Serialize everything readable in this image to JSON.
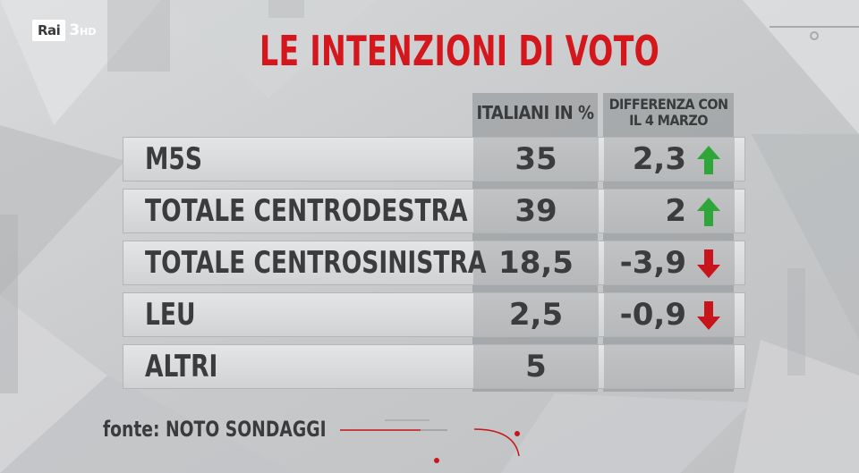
{
  "broadcaster": {
    "logo_text": "Rai",
    "channel": "3",
    "quality": "HD"
  },
  "title": "LE INTENZIONI DI VOTO",
  "source": "fonte: NOTO SONDAGGI",
  "colors": {
    "title": "#d4161d",
    "up": "#2fa63a",
    "down": "#c8141b"
  },
  "chart_data": {
    "type": "table",
    "title": "LE INTENZIONI DI VOTO",
    "columns": [
      "ITALIANI IN %",
      "DIFFERENZA CON IL 4 MARZO"
    ],
    "rows": [
      {
        "party": "M5S",
        "pct": "35",
        "diff": "2,3",
        "trend": "up"
      },
      {
        "party": "TOTALE CENTRODESTRA",
        "pct": "39",
        "diff": "2",
        "trend": "up"
      },
      {
        "party": "TOTALE CENTROSINISTRA",
        "pct": "18,5",
        "diff": "-3,9",
        "trend": "down"
      },
      {
        "party": "LEU",
        "pct": "2,5",
        "diff": "-0,9",
        "trend": "down"
      },
      {
        "party": "ALTRI",
        "pct": "5",
        "diff": "",
        "trend": ""
      }
    ]
  }
}
